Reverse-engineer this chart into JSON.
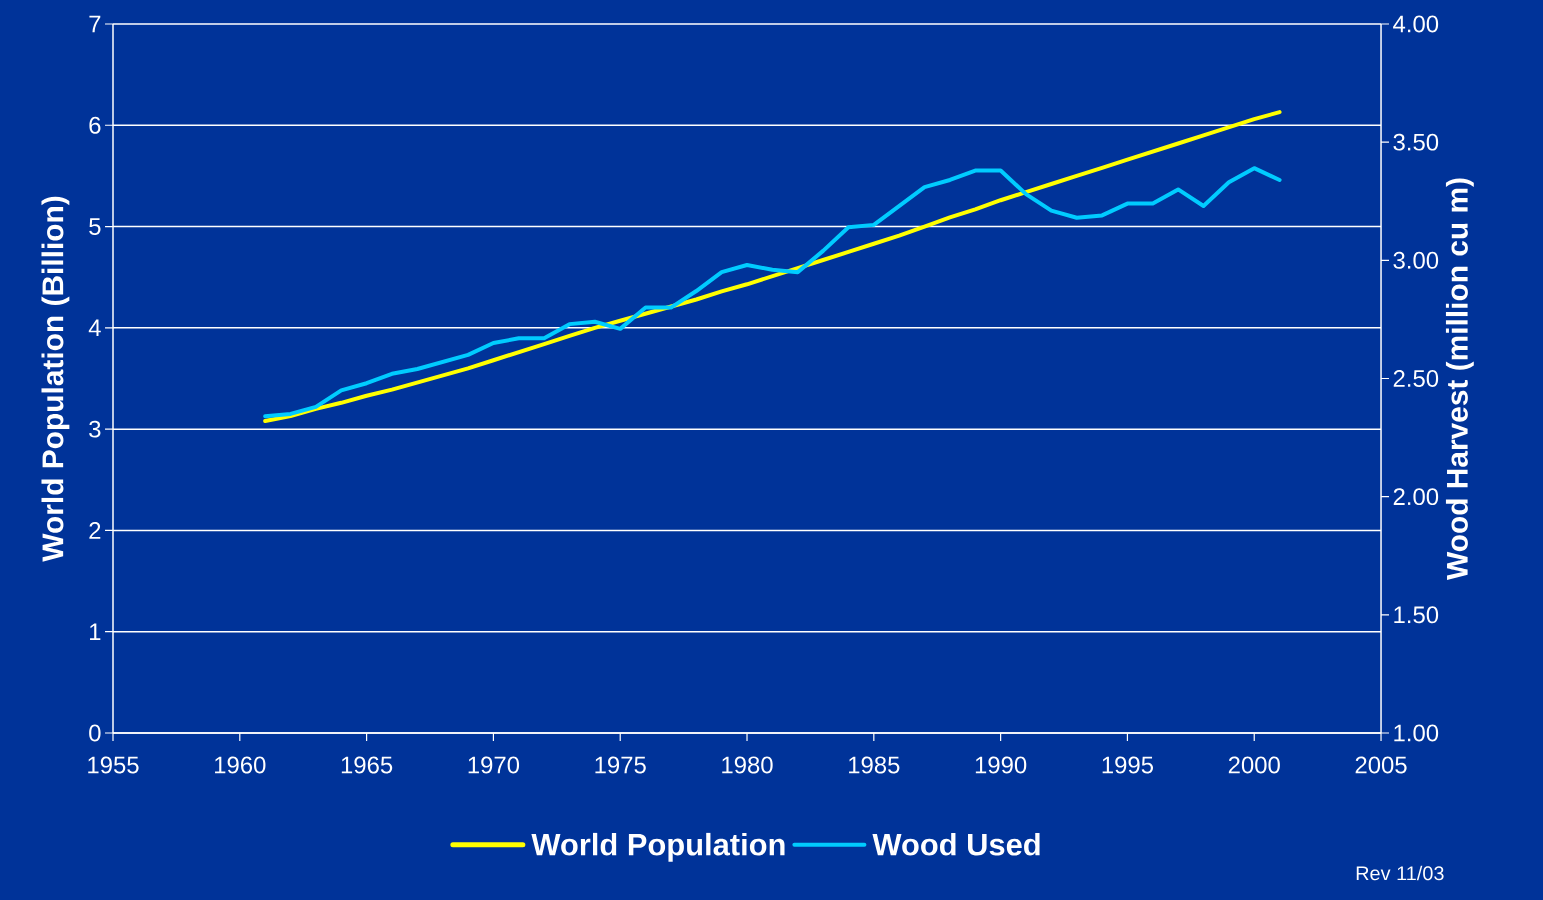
{
  "chart_data": {
    "type": "line",
    "ylabel": "World Population (Billion)",
    "y2label": "Wood Harvest (million cu m)",
    "x": [
      1961,
      1962,
      1963,
      1964,
      1965,
      1966,
      1967,
      1968,
      1969,
      1970,
      1971,
      1972,
      1973,
      1974,
      1975,
      1976,
      1977,
      1978,
      1979,
      1980,
      1981,
      1982,
      1983,
      1984,
      1985,
      1986,
      1987,
      1988,
      1989,
      1990,
      1991,
      1992,
      1993,
      1994,
      1995,
      1996,
      1997,
      1998,
      1999,
      2000,
      2001
    ],
    "series": [
      {
        "name": "World Population",
        "color": "#ffff00",
        "values": [
          3.08,
          3.13,
          3.2,
          3.26,
          3.33,
          3.39,
          3.46,
          3.53,
          3.6,
          3.68,
          3.76,
          3.84,
          3.92,
          4.0,
          4.07,
          4.14,
          4.21,
          4.28,
          4.36,
          4.43,
          4.51,
          4.59,
          4.67,
          4.75,
          4.83,
          4.91,
          5.0,
          5.09,
          5.17,
          5.26,
          5.34,
          5.42,
          5.5,
          5.58,
          5.66,
          5.74,
          5.82,
          5.9,
          5.98,
          6.06,
          6.13
        ]
      },
      {
        "name": "Wood Used",
        "color": "#00ccff",
        "axis": "y2",
        "values": [
          2.34,
          2.35,
          2.38,
          2.45,
          2.48,
          2.52,
          2.54,
          2.57,
          2.6,
          2.65,
          2.67,
          2.67,
          2.73,
          2.74,
          2.71,
          2.8,
          2.8,
          2.87,
          2.95,
          2.98,
          2.96,
          2.95,
          3.04,
          3.14,
          3.15,
          3.23,
          3.31,
          3.34,
          3.38,
          3.38,
          3.28,
          3.21,
          3.18,
          3.19,
          3.24,
          3.24,
          3.3,
          3.23,
          3.33,
          3.39,
          3.34
        ]
      }
    ],
    "xlim": [
      1955,
      2005
    ],
    "xticks": [
      1955,
      1960,
      1965,
      1970,
      1975,
      1980,
      1985,
      1990,
      1995,
      2000,
      2005
    ],
    "ylim": [
      0,
      7
    ],
    "yticks": [
      0,
      1,
      2,
      3,
      4,
      5,
      6,
      7
    ],
    "y2lim": [
      1,
      4
    ],
    "y2ticks": [
      {
        "value": 1,
        "label": "1.00"
      },
      {
        "value": 1.5,
        "label": "1.50"
      },
      {
        "value": 2,
        "label": "2.00"
      },
      {
        "value": 2.5,
        "label": "2.50"
      },
      {
        "value": 3,
        "label": "3.00"
      },
      {
        "value": 3.5,
        "label": "3.50"
      },
      {
        "value": 4,
        "label": "4.00"
      }
    ],
    "grid": "y",
    "legend": "bottom",
    "line_style": "solid",
    "marker": "none",
    "annotations": [
      "Rev 11/03"
    ]
  }
}
